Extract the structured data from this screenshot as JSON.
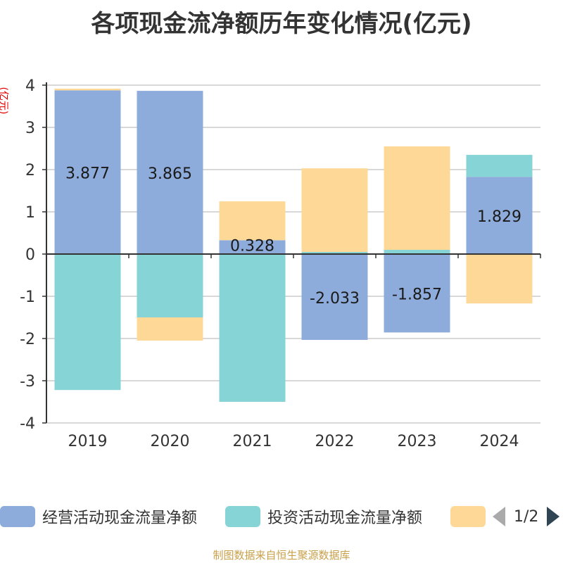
{
  "title": "各项现金流净额历年变化情况(亿元)",
  "unit_label": "(亿元)",
  "source": "制图数据来自恒生聚源数据库",
  "legend": {
    "items": [
      {
        "label": "经营活动现金流量净额",
        "color": "#8eacdb"
      },
      {
        "label": "投资活动现金流量净额",
        "color": "#86d4d6"
      },
      {
        "label": "",
        "color": "#fed896"
      }
    ],
    "page": "1/2"
  },
  "chart_data": {
    "type": "bar",
    "stacked": true,
    "categories": [
      "2019",
      "2020",
      "2021",
      "2022",
      "2023",
      "2024"
    ],
    "ylim": [
      -4,
      4
    ],
    "yticks": [
      4,
      3,
      2,
      1,
      0,
      -1,
      -2,
      -3,
      -4
    ],
    "grid": true,
    "legend_position": "bottom",
    "series": [
      {
        "name": "经营活动现金流量净额",
        "color": "#8eacdb",
        "values": [
          3.877,
          3.865,
          0.328,
          -2.033,
          -1.857,
          1.829
        ],
        "labels": [
          "3.877",
          "3.865",
          "0.328",
          "-2.033",
          "-1.857",
          "1.829"
        ]
      },
      {
        "name": "投资活动现金流量净额",
        "color": "#86d4d6",
        "values": [
          -3.22,
          -1.5,
          -3.5,
          0.05,
          0.1,
          0.52
        ]
      },
      {
        "name": "",
        "color": "#fed896",
        "values": [
          0.04,
          -0.55,
          0.92,
          1.98,
          2.45,
          -1.17
        ]
      }
    ]
  }
}
